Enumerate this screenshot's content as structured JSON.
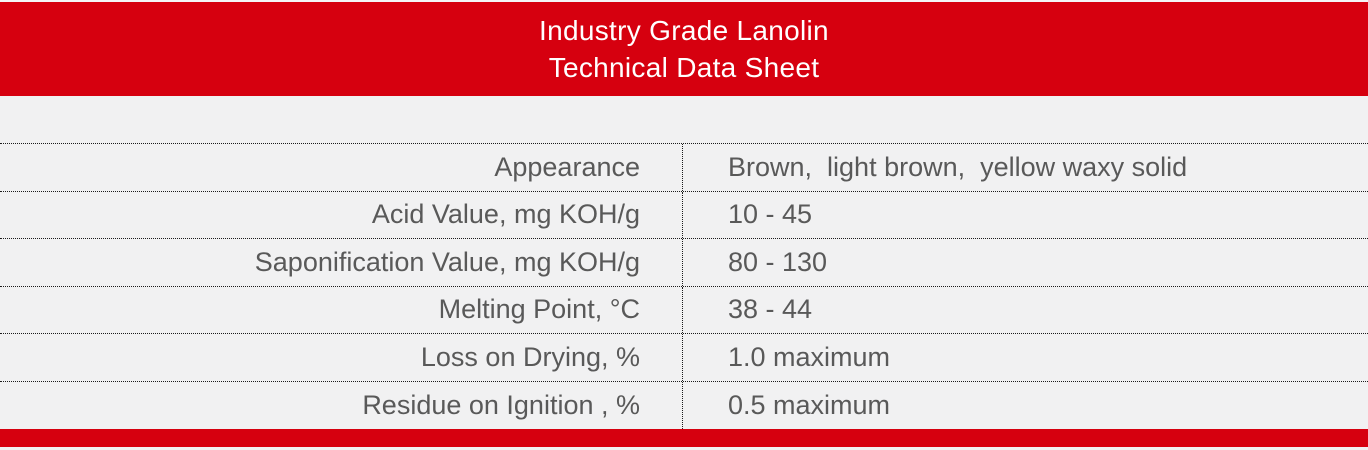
{
  "header": {
    "title_line1": "Industry Grade Lanolin",
    "title_line2": "Technical Data Sheet"
  },
  "table": {
    "rows": [
      {
        "property": "Appearance",
        "value": "Brown,  light brown,  yellow waxy solid"
      },
      {
        "property": "Acid Value, mg KOH/g",
        "value": "10 - 45"
      },
      {
        "property": "Saponification Value, mg KOH/g",
        "value": "80 - 130"
      },
      {
        "property": "Melting Point, °C",
        "value": "38 - 44"
      },
      {
        "property": "Loss on Drying, %",
        "value": "1.0 maximum"
      },
      {
        "property": "Residue on Ignition , %",
        "value": "0.5 maximum"
      }
    ]
  },
  "colors": {
    "banner_red": "#d6000f",
    "page_bg": "#f1f1f2",
    "table_text_gray": "#595959",
    "title_white": "#ffffff"
  }
}
